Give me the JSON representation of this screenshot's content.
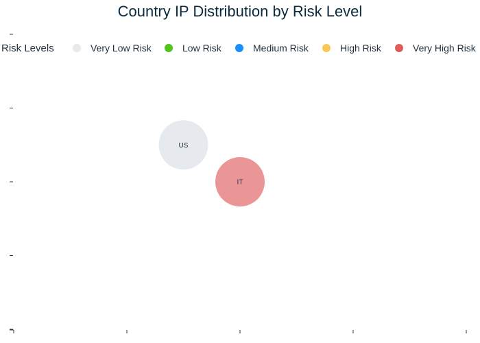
{
  "chart_data": {
    "type": "scatter",
    "title": "Country IP Distribution by Risk Level",
    "legend": {
      "title": "Risk Levels",
      "placement": "top",
      "entries": [
        {
          "label": "Very Low Risk",
          "color": "#e6eaee"
        },
        {
          "label": "Low Risk",
          "color": "#52c41a"
        },
        {
          "label": "Medium Risk",
          "color": "#1890ff"
        },
        {
          "label": "High Risk",
          "color": "#fac858"
        },
        {
          "label": "Very High Risk",
          "color": "#e05d5d"
        }
      ]
    },
    "xlim": [
      0,
      4
    ],
    "ylim": [
      0,
      4
    ],
    "xticks": [
      0,
      1,
      2,
      3,
      4
    ],
    "yticks": [
      0,
      1,
      2,
      3,
      4
    ],
    "grid": false,
    "points": [
      {
        "label": "US",
        "x": 1.5,
        "y": 2.5,
        "risk": "Very Low Risk",
        "color": "#e6eaee",
        "opacity": 1
      },
      {
        "label": "IT",
        "x": 2.0,
        "y": 2.0,
        "risk": "Very High Risk",
        "color": "#e05d5d",
        "opacity": 0.65
      }
    ]
  }
}
